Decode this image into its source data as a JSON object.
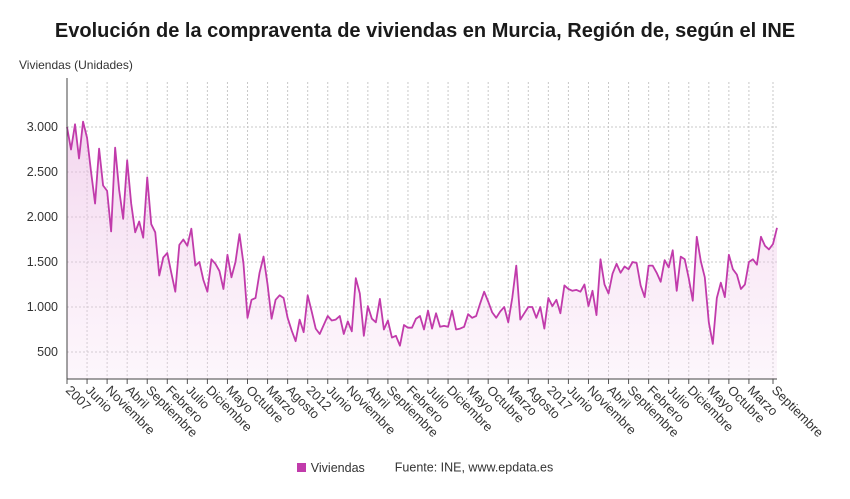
{
  "chart_data": {
    "type": "area",
    "title": "Evolución de la compraventa de viviendas en Murcia, Región de, según el INE",
    "ylabel": "Viviendas (Unidades)",
    "ylim": [
      200,
      3500
    ],
    "yticks": [
      500,
      1000,
      1500,
      2000,
      2500,
      3000
    ],
    "ytick_labels": [
      "500",
      "1.000",
      "1.500",
      "2.000",
      "2.500",
      "3.000"
    ],
    "grid": true,
    "legend_position": "bottom",
    "color": "#c13bab",
    "xtick_labels": [
      {
        "month": 0,
        "label": "2007"
      },
      {
        "month": 5,
        "label": "Junio"
      },
      {
        "month": 10,
        "label": "Noviembre"
      },
      {
        "month": 15,
        "label": "Abril"
      },
      {
        "month": 20,
        "label": "Septiembre"
      },
      {
        "month": 25,
        "label": "Febrero"
      },
      {
        "month": 30,
        "label": "Julio"
      },
      {
        "month": 35,
        "label": "Diciembre"
      },
      {
        "month": 40,
        "label": "Mayo"
      },
      {
        "month": 45,
        "label": "Octubre"
      },
      {
        "month": 50,
        "label": "Marzo"
      },
      {
        "month": 55,
        "label": "Agosto"
      },
      {
        "month": 60,
        "label": "2012"
      },
      {
        "month": 65,
        "label": "Junio"
      },
      {
        "month": 70,
        "label": "Noviembre"
      },
      {
        "month": 75,
        "label": "Abril"
      },
      {
        "month": 80,
        "label": "Septiembre"
      },
      {
        "month": 85,
        "label": "Febrero"
      },
      {
        "month": 90,
        "label": "Julio"
      },
      {
        "month": 95,
        "label": "Diciembre"
      },
      {
        "month": 100,
        "label": "Mayo"
      },
      {
        "month": 105,
        "label": "Octubre"
      },
      {
        "month": 110,
        "label": "Marzo"
      },
      {
        "month": 115,
        "label": "Agosto"
      },
      {
        "month": 120,
        "label": "2017"
      },
      {
        "month": 125,
        "label": "Junio"
      },
      {
        "month": 130,
        "label": "Noviembre"
      },
      {
        "month": 135,
        "label": "Abril"
      },
      {
        "month": 140,
        "label": "Septiembre"
      },
      {
        "month": 145,
        "label": "Febrero"
      },
      {
        "month": 150,
        "label": "Julio"
      },
      {
        "month": 155,
        "label": "Diciembre"
      },
      {
        "month": 160,
        "label": "Mayo"
      },
      {
        "month": 165,
        "label": "Octubre"
      },
      {
        "month": 170,
        "label": "Marzo"
      },
      {
        "month": 176,
        "label": "Septiembre"
      }
    ],
    "series": [
      {
        "name": "Viviendas",
        "x_start": "2007-01",
        "values": [
          3000,
          2750,
          3030,
          2650,
          3060,
          2880,
          2500,
          2150,
          2760,
          2350,
          2290,
          1840,
          2770,
          2300,
          1980,
          2630,
          2150,
          1830,
          1950,
          1770,
          2440,
          1920,
          1830,
          1350,
          1550,
          1600,
          1380,
          1170,
          1690,
          1750,
          1680,
          1870,
          1460,
          1500,
          1300,
          1170,
          1530,
          1480,
          1400,
          1200,
          1580,
          1330,
          1500,
          1810,
          1480,
          880,
          1080,
          1100,
          1380,
          1560,
          1250,
          870,
          1080,
          1130,
          1100,
          880,
          740,
          620,
          860,
          720,
          1130,
          950,
          760,
          700,
          800,
          900,
          850,
          860,
          900,
          700,
          840,
          730,
          1320,
          1150,
          680,
          1010,
          870,
          830,
          1090,
          750,
          850,
          660,
          680,
          570,
          800,
          770,
          770,
          870,
          900,
          750,
          960,
          760,
          930,
          780,
          790,
          780,
          960,
          750,
          760,
          780,
          920,
          880,
          900,
          1040,
          1170,
          1060,
          940,
          880,
          950,
          1000,
          830,
          1100,
          1460,
          860,
          930,
          1000,
          1000,
          880,
          1000,
          760,
          1100,
          1010,
          1080,
          930,
          1240,
          1200,
          1180,
          1190,
          1170,
          1250,
          1010,
          1180,
          910,
          1530,
          1250,
          1150,
          1370,
          1480,
          1380,
          1450,
          1420,
          1500,
          1490,
          1240,
          1110,
          1460,
          1460,
          1380,
          1280,
          1520,
          1440,
          1630,
          1180,
          1560,
          1530,
          1320,
          1070,
          1780,
          1510,
          1330,
          830,
          590,
          1100,
          1270,
          1110,
          1580,
          1420,
          1360,
          1200,
          1250,
          1500,
          1530,
          1470,
          1780,
          1680,
          1640,
          1700,
          1880
        ]
      }
    ]
  },
  "legend": {
    "label": "Viviendas",
    "color": "#c13bab"
  },
  "source": "Fuente: INE, www.epdata.es"
}
